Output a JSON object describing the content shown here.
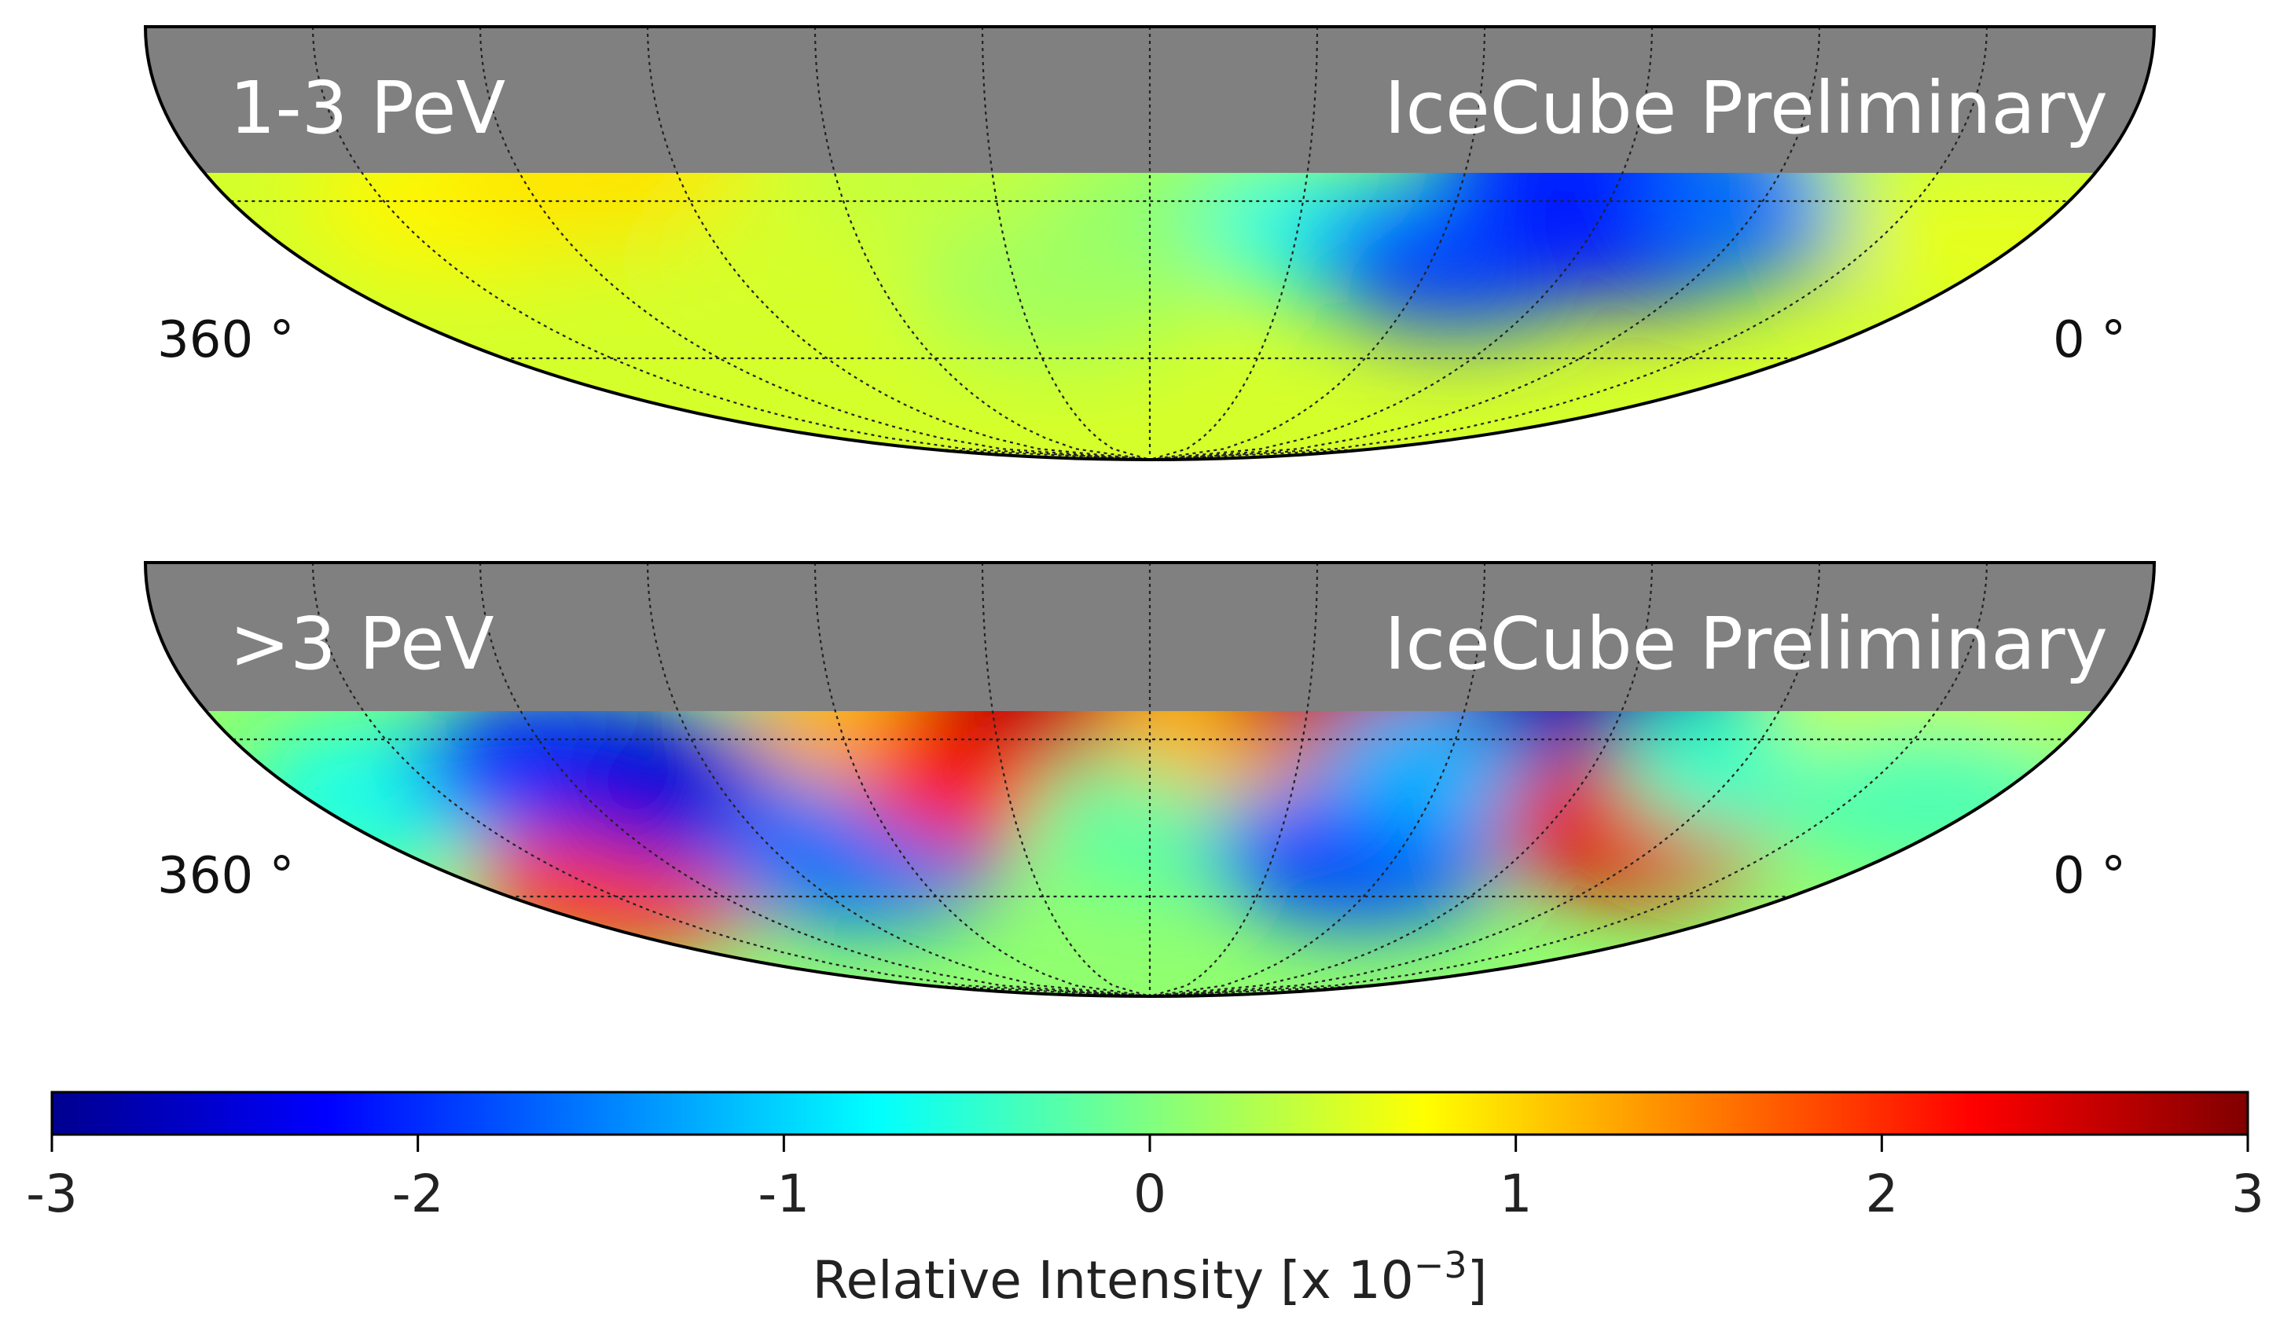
{
  "chart_data": [
    {
      "type": "heatmap",
      "projection": "mollweide (southern sky segment)",
      "label": "1-3 PeV",
      "watermark": "IceCube Preliminary",
      "lon_left_label": "360 °",
      "lon_right_label": "0 °",
      "masked_region_color": "#808080",
      "colormap": "jet",
      "value_range": [
        -3,
        3
      ],
      "regions": [
        {
          "lon": 315,
          "lat": -45,
          "value": 0.8
        },
        {
          "lon": 285,
          "lat": -40,
          "value": 0.9
        },
        {
          "lon": 250,
          "lat": -55,
          "value": 0.5
        },
        {
          "lon": 220,
          "lat": -40,
          "value": 0.4
        },
        {
          "lon": 200,
          "lat": -60,
          "value": 0.2
        },
        {
          "lon": 170,
          "lat": -45,
          "value": 0.1
        },
        {
          "lon": 140,
          "lat": -50,
          "value": -0.6
        },
        {
          "lon": 115,
          "lat": -55,
          "value": -1.9
        },
        {
          "lon": 100,
          "lat": -35,
          "value": -2.0
        },
        {
          "lon": 80,
          "lat": -50,
          "value": -2.2
        },
        {
          "lon": 55,
          "lat": -45,
          "value": -1.6
        },
        {
          "lon": 25,
          "lat": -40,
          "value": 0.3
        },
        {
          "lon": 10,
          "lat": -50,
          "value": 0.6
        }
      ]
    },
    {
      "type": "heatmap",
      "projection": "mollweide (southern sky segment)",
      "label": ">3 PeV",
      "watermark": "IceCube Preliminary",
      "lon_left_label": "360 °",
      "lon_right_label": "0 °",
      "masked_region_color": "#808080",
      "colormap": "jet",
      "value_range": [
        -3,
        3
      ],
      "regions": [
        {
          "lon": 340,
          "lat": -55,
          "value": -0.6
        },
        {
          "lon": 320,
          "lat": -70,
          "value": 1.9
        },
        {
          "lon": 300,
          "lat": -50,
          "value": -2.0
        },
        {
          "lon": 275,
          "lat": -55,
          "value": -2.5
        },
        {
          "lon": 250,
          "lat": -65,
          "value": -1.6
        },
        {
          "lon": 230,
          "lat": -42,
          "value": 1.2
        },
        {
          "lon": 210,
          "lat": -52,
          "value": 2.2
        },
        {
          "lon": 198,
          "lat": -36,
          "value": 2.6
        },
        {
          "lon": 175,
          "lat": -60,
          "value": -0.2
        },
        {
          "lon": 160,
          "lat": -42,
          "value": 1.2
        },
        {
          "lon": 140,
          "lat": -36,
          "value": 2.6
        },
        {
          "lon": 130,
          "lat": -65,
          "value": -1.8
        },
        {
          "lon": 115,
          "lat": -50,
          "value": -1.2
        },
        {
          "lon": 95,
          "lat": -36,
          "value": -2.8
        },
        {
          "lon": 70,
          "lat": -60,
          "value": 2.4
        },
        {
          "lon": 55,
          "lat": -50,
          "value": -0.4
        },
        {
          "lon": 30,
          "lat": -42,
          "value": 0.5
        },
        {
          "lon": 15,
          "lat": -55,
          "value": -0.3
        }
      ]
    }
  ],
  "colorbar": {
    "ticks": [
      "-3",
      "-2",
      "-1",
      "0",
      "1",
      "2",
      "3"
    ],
    "label": "Relative Intensity [x 10",
    "label_exponent": "−3",
    "label_close": "]"
  }
}
